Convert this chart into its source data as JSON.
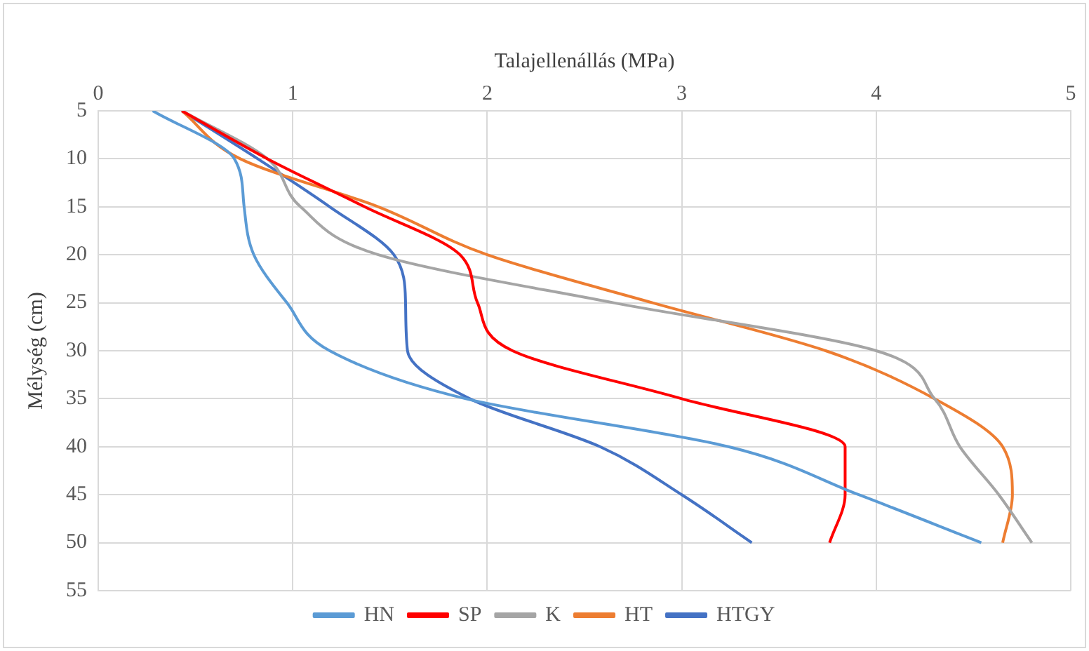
{
  "chart_data": {
    "type": "line",
    "orientation": "horizontal",
    "xlabel": "Talajellenállás (MPa)",
    "ylabel": "Mélység (cm)",
    "x": [
      5,
      10,
      15,
      20,
      25,
      30,
      35,
      40,
      45,
      50
    ],
    "series": [
      {
        "name": "HN",
        "color": "#5b9bd5",
        "values": [
          0.28,
          0.7,
          0.75,
          0.8,
          0.97,
          1.19,
          1.89,
          3.24,
          3.91,
          4.54
        ]
      },
      {
        "name": "SP",
        "color": "#ff0000",
        "values": [
          0.43,
          0.87,
          1.37,
          1.86,
          1.95,
          2.13,
          3.0,
          3.84,
          3.84,
          3.76
        ]
      },
      {
        "name": "K",
        "color": "#a5a5a5",
        "values": [
          0.43,
          0.87,
          1.04,
          1.44,
          2.65,
          4.0,
          4.3,
          4.43,
          4.63,
          4.8
        ]
      },
      {
        "name": "HT",
        "color": "#ed7d31",
        "values": [
          0.43,
          0.73,
          1.44,
          2.0,
          2.85,
          3.74,
          4.3,
          4.65,
          4.7,
          4.65
        ]
      },
      {
        "name": "HTGY",
        "color": "#4472c4",
        "values": [
          0.43,
          0.82,
          1.19,
          1.52,
          1.58,
          1.59,
          1.91,
          2.58,
          3.0,
          3.36
        ]
      }
    ],
    "xlim": [
      0,
      5
    ],
    "xticks": [
      0,
      1,
      2,
      3,
      4,
      5
    ],
    "ylim": [
      55,
      5
    ],
    "yticks": [
      5,
      10,
      15,
      20,
      25,
      30,
      35,
      40,
      45,
      50,
      55
    ],
    "grid": true,
    "legend": "bottom",
    "marker": "none",
    "line_style": "solid"
  }
}
